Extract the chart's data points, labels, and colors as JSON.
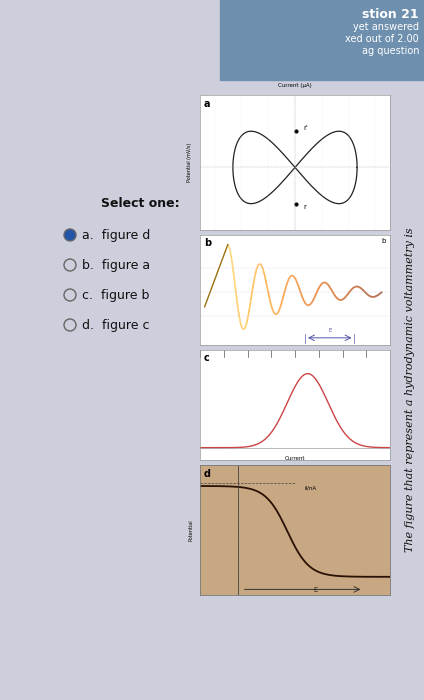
{
  "title_text": "The figure that represent a hydrodynamic voltammetry is",
  "question_label": "stion 21",
  "answered_label": "yet answered",
  "score_label": "xed out of 2.00",
  "flag_label": "ag question",
  "select_one": "Select one:",
  "options": [
    "a.  figure d",
    "b.  figure a",
    "c.  figure b",
    "d.  figure c"
  ],
  "selected_option": 0,
  "bg_color": "#cdd0dc",
  "header_color": "#6e8fad",
  "fig_d_bg": "#c8a882"
}
